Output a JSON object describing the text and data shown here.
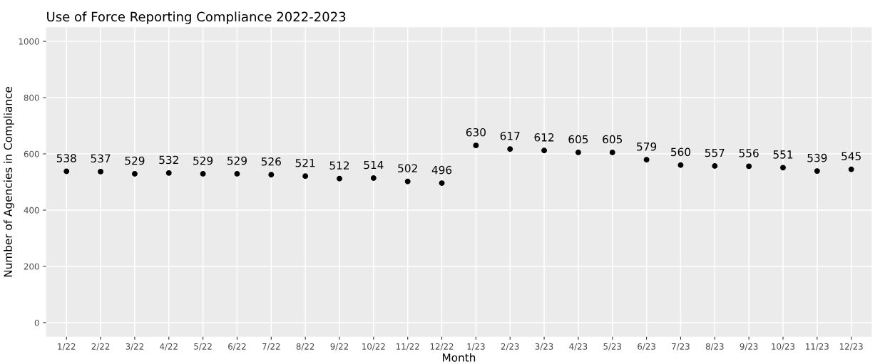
{
  "chart_data": {
    "type": "scatter",
    "title": "Use of Force Reporting Compliance 2022-2023",
    "xlabel": "Month",
    "ylabel": "Number of Agencies in Compliance",
    "categories": [
      "1/22",
      "2/22",
      "3/22",
      "4/22",
      "5/22",
      "6/22",
      "7/22",
      "8/22",
      "9/22",
      "10/22",
      "11/22",
      "12/22",
      "1/23",
      "2/23",
      "3/23",
      "4/23",
      "5/23",
      "6/23",
      "7/23",
      "8/23",
      "9/23",
      "10/23",
      "11/23",
      "12/23"
    ],
    "values": [
      538,
      537,
      529,
      532,
      529,
      529,
      526,
      521,
      512,
      514,
      502,
      496,
      630,
      617,
      612,
      605,
      605,
      579,
      560,
      557,
      556,
      551,
      539,
      545
    ],
    "color": "#000000",
    "marker": "circle",
    "data_labels": true,
    "ylim": [
      -50,
      1050
    ],
    "yticks": [
      0,
      200,
      400,
      600,
      800,
      1000
    ],
    "grid": true,
    "legend": false
  }
}
